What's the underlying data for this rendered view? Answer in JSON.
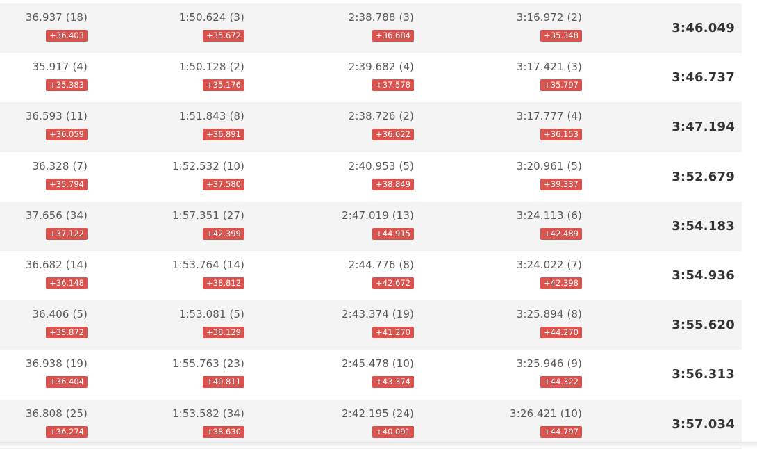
{
  "rows": [
    {
      "s1": "36.937 (18)",
      "g1": "+36.403",
      "s2": "1:50.624 (3)",
      "g2": "+35.672",
      "s3": "2:38.788 (3)",
      "g3": "+36.684",
      "s4": "3:16.972 (2)",
      "g4": "+35.348",
      "total": "3:46.049"
    },
    {
      "s1": "35.917 (4)",
      "g1": "+35.383",
      "s2": "1:50.128 (2)",
      "g2": "+35.176",
      "s3": "2:39.682 (4)",
      "g3": "+37.578",
      "s4": "3:17.421 (3)",
      "g4": "+35.797",
      "total": "3:46.737"
    },
    {
      "s1": "36.593 (11)",
      "g1": "+36.059",
      "s2": "1:51.843 (8)",
      "g2": "+36.891",
      "s3": "2:38.726 (2)",
      "g3": "+36.622",
      "s4": "3:17.777 (4)",
      "g4": "+36.153",
      "total": "3:47.194"
    },
    {
      "s1": "36.328 (7)",
      "g1": "+35.794",
      "s2": "1:52.532 (10)",
      "g2": "+37.580",
      "s3": "2:40.953 (5)",
      "g3": "+38.849",
      "s4": "3:20.961 (5)",
      "g4": "+39.337",
      "total": "3:52.679"
    },
    {
      "s1": "37.656 (34)",
      "g1": "+37.122",
      "s2": "1:57.351 (27)",
      "g2": "+42.399",
      "s3": "2:47.019 (13)",
      "g3": "+44.915",
      "s4": "3:24.113 (6)",
      "g4": "+42.489",
      "total": "3:54.183"
    },
    {
      "s1": "36.682 (14)",
      "g1": "+36.148",
      "s2": "1:53.764 (14)",
      "g2": "+38.812",
      "s3": "2:44.776 (8)",
      "g3": "+42.672",
      "s4": "3:24.022 (7)",
      "g4": "+42.398",
      "total": "3:54.936"
    },
    {
      "s1": "36.406 (5)",
      "g1": "+35.872",
      "s2": "1:53.081 (5)",
      "g2": "+38.129",
      "s3": "2:43.374 (19)",
      "g3": "+41.270",
      "s4": "3:25.894 (8)",
      "g4": "+44.270",
      "total": "3:55.620"
    },
    {
      "s1": "36.938 (19)",
      "g1": "+36.404",
      "s2": "1:55.763 (23)",
      "g2": "+40.811",
      "s3": "2:45.478 (10)",
      "g3": "+43.374",
      "s4": "3:25.946 (9)",
      "g4": "+44.322",
      "total": "3:56.313"
    },
    {
      "s1": "36.808 (25)",
      "g1": "+36.274",
      "s2": "1:53.582 (34)",
      "g2": "+38.630",
      "s3": "2:42.195 (24)",
      "g3": "+40.091",
      "s4": "3:26.421 (10)",
      "g4": "+44.797",
      "total": "3:57.034"
    }
  ],
  "colors": {
    "gap_badge": "#d9534f",
    "alt_row": "#f4f4f4",
    "split_text": "#5a5a5a",
    "total_text": "#333333"
  }
}
